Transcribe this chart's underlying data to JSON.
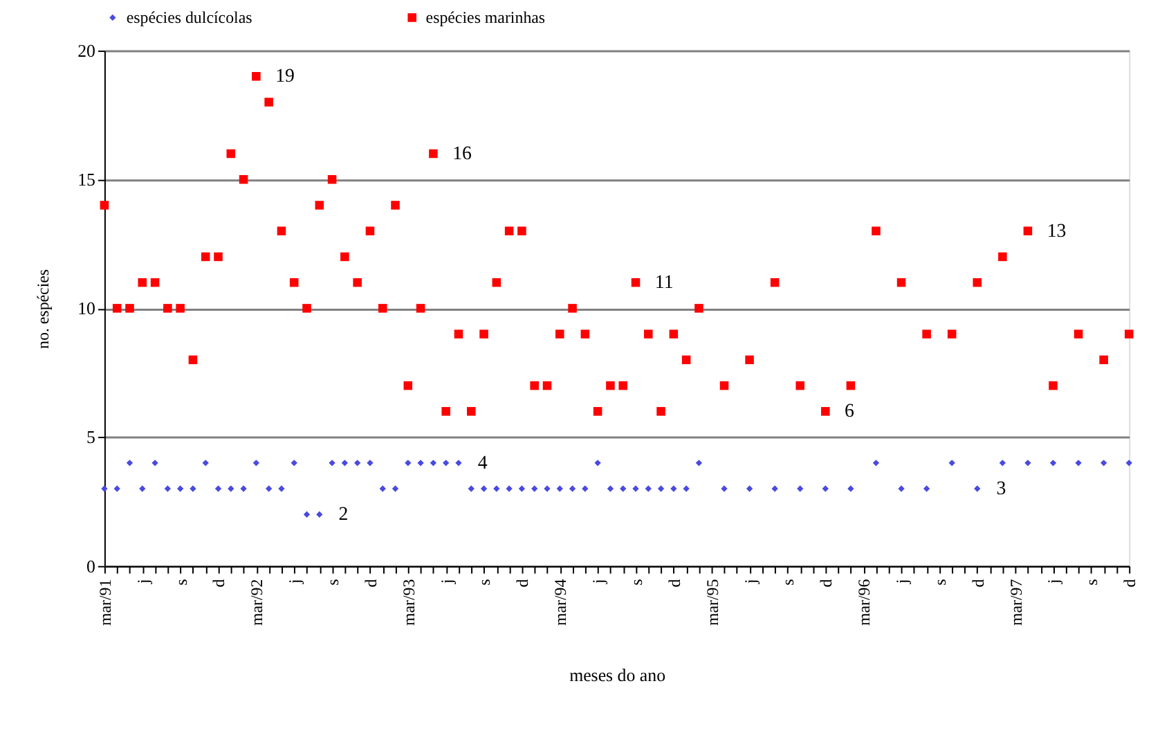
{
  "chart_data": {
    "type": "scatter",
    "xlabel": "meses do ano",
    "ylabel": "no. espécies",
    "x": [
      "1991-03",
      "1991-04",
      "1991-05",
      "1991-06",
      "1991-07",
      "1991-08",
      "1991-09",
      "1991-10",
      "1991-11",
      "1991-12",
      "1992-01",
      "1992-02",
      "1992-03",
      "1992-04",
      "1992-05",
      "1992-06",
      "1992-07",
      "1992-08",
      "1992-09",
      "1992-10",
      "1992-11",
      "1992-12",
      "1993-01",
      "1993-02",
      "1993-03",
      "1993-04",
      "1993-05",
      "1993-06",
      "1993-07",
      "1993-08",
      "1993-09",
      "1993-10",
      "1993-11",
      "1993-12",
      "1994-01",
      "1994-02",
      "1994-03",
      "1994-04",
      "1994-05",
      "1994-06",
      "1994-07",
      "1994-08",
      "1994-09",
      "1994-10",
      "1994-11",
      "1994-12",
      "1995-01",
      "1995-02",
      "1995-03",
      "1995-04",
      "1995-05",
      "1995-06",
      "1995-07",
      "1995-08",
      "1995-09",
      "1995-10",
      "1995-11",
      "1995-12",
      "1996-01",
      "1996-02",
      "1996-03",
      "1996-04",
      "1996-05",
      "1996-06",
      "1996-07",
      "1996-08",
      "1996-09",
      "1996-10",
      "1996-11",
      "1996-12",
      "1997-01",
      "1997-02",
      "1997-03",
      "1997-04",
      "1997-05",
      "1997-06",
      "1997-07",
      "1997-08",
      "1997-09",
      "1997-10",
      "1997-11",
      "1997-12"
    ],
    "series": [
      {
        "name": "espécies dulcícolas",
        "color": "#4a4ae0",
        "marker": "diamond",
        "values": [
          3,
          3,
          4,
          3,
          4,
          3,
          3,
          3,
          4,
          3,
          3,
          3,
          4,
          3,
          3,
          4,
          2,
          2,
          4,
          4,
          4,
          4,
          3,
          3,
          4,
          4,
          4,
          4,
          4,
          3,
          3,
          3,
          3,
          3,
          3,
          3,
          3,
          3,
          3,
          4,
          3,
          3,
          3,
          3,
          3,
          3,
          3,
          4,
          null,
          3,
          null,
          3,
          null,
          3,
          null,
          3,
          null,
          3,
          null,
          3,
          null,
          4,
          null,
          3,
          null,
          3,
          null,
          4,
          null,
          3,
          null,
          4,
          null,
          4,
          null,
          4,
          null,
          4,
          null,
          4,
          null,
          4
        ]
      },
      {
        "name": "espécies marinhas",
        "color": "#ff0000",
        "marker": "square",
        "values": [
          14,
          10,
          10,
          11,
          11,
          10,
          10,
          8,
          12,
          12,
          16,
          15,
          19,
          18,
          13,
          11,
          10,
          14,
          15,
          12,
          11,
          13,
          10,
          14,
          7,
          10,
          16,
          6,
          9,
          6,
          9,
          11,
          13,
          13,
          7,
          7,
          9,
          10,
          9,
          6,
          7,
          7,
          11,
          9,
          6,
          9,
          8,
          10,
          null,
          7,
          null,
          8,
          null,
          11,
          null,
          7,
          null,
          6,
          null,
          7,
          null,
          13,
          null,
          11,
          null,
          9,
          null,
          9,
          null,
          11,
          null,
          12,
          null,
          13,
          null,
          7,
          null,
          9,
          null,
          8,
          null,
          9
        ]
      }
    ],
    "xlim": [
      "1991-03",
      "1997-12"
    ],
    "xticks": [
      {
        "value": "1991-03",
        "label": "mar/91"
      },
      {
        "value": "1991-04",
        "label": null
      },
      {
        "value": "1991-05",
        "label": null
      },
      {
        "value": "1991-06",
        "label": "j"
      },
      {
        "value": "1991-07",
        "label": null
      },
      {
        "value": "1991-08",
        "label": null
      },
      {
        "value": "1991-09",
        "label": "s"
      },
      {
        "value": "1991-10",
        "label": null
      },
      {
        "value": "1991-11",
        "label": null
      },
      {
        "value": "1991-12",
        "label": "d"
      },
      {
        "value": "1992-01",
        "label": null
      },
      {
        "value": "1992-02",
        "label": null
      },
      {
        "value": "1992-03",
        "label": "mar/92"
      },
      {
        "value": "1992-04",
        "label": null
      },
      {
        "value": "1992-05",
        "label": null
      },
      {
        "value": "1992-06",
        "label": "j"
      },
      {
        "value": "1992-07",
        "label": null
      },
      {
        "value": "1992-08",
        "label": null
      },
      {
        "value": "1992-09",
        "label": "s"
      },
      {
        "value": "1992-10",
        "label": null
      },
      {
        "value": "1992-11",
        "label": null
      },
      {
        "value": "1992-12",
        "label": "d"
      },
      {
        "value": "1993-01",
        "label": null
      },
      {
        "value": "1993-02",
        "label": null
      },
      {
        "value": "1993-03",
        "label": "mar/93"
      },
      {
        "value": "1993-04",
        "label": null
      },
      {
        "value": "1993-05",
        "label": null
      },
      {
        "value": "1993-06",
        "label": "j"
      },
      {
        "value": "1993-07",
        "label": null
      },
      {
        "value": "1993-08",
        "label": null
      },
      {
        "value": "1993-09",
        "label": "s"
      },
      {
        "value": "1993-10",
        "label": null
      },
      {
        "value": "1993-11",
        "label": null
      },
      {
        "value": "1993-12",
        "label": "d"
      },
      {
        "value": "1994-01",
        "label": null
      },
      {
        "value": "1994-02",
        "label": null
      },
      {
        "value": "1994-03",
        "label": "mar/94"
      },
      {
        "value": "1994-04",
        "label": null
      },
      {
        "value": "1994-05",
        "label": null
      },
      {
        "value": "1994-06",
        "label": "j"
      },
      {
        "value": "1994-07",
        "label": null
      },
      {
        "value": "1994-08",
        "label": null
      },
      {
        "value": "1994-09",
        "label": "s"
      },
      {
        "value": "1994-10",
        "label": null
      },
      {
        "value": "1994-11",
        "label": null
      },
      {
        "value": "1994-12",
        "label": "d"
      },
      {
        "value": "1995-01",
        "label": null
      },
      {
        "value": "1995-02",
        "label": null
      },
      {
        "value": "1995-03",
        "label": "mar/95"
      },
      {
        "value": "1995-04",
        "label": null
      },
      {
        "value": "1995-05",
        "label": null
      },
      {
        "value": "1995-06",
        "label": "j"
      },
      {
        "value": "1995-07",
        "label": null
      },
      {
        "value": "1995-08",
        "label": null
      },
      {
        "value": "1995-09",
        "label": "s"
      },
      {
        "value": "1995-10",
        "label": null
      },
      {
        "value": "1995-11",
        "label": null
      },
      {
        "value": "1995-12",
        "label": "d"
      },
      {
        "value": "1996-01",
        "label": null
      },
      {
        "value": "1996-02",
        "label": null
      },
      {
        "value": "1996-03",
        "label": "mar/96"
      },
      {
        "value": "1996-04",
        "label": null
      },
      {
        "value": "1996-05",
        "label": null
      },
      {
        "value": "1996-06",
        "label": "j"
      },
      {
        "value": "1996-07",
        "label": null
      },
      {
        "value": "1996-08",
        "label": null
      },
      {
        "value": "1996-09",
        "label": "s"
      },
      {
        "value": "1996-10",
        "label": null
      },
      {
        "value": "1996-11",
        "label": null
      },
      {
        "value": "1996-12",
        "label": "d"
      },
      {
        "value": "1997-01",
        "label": null
      },
      {
        "value": "1997-02",
        "label": null
      },
      {
        "value": "1997-03",
        "label": "mar/97"
      },
      {
        "value": "1997-04",
        "label": null
      },
      {
        "value": "1997-05",
        "label": null
      },
      {
        "value": "1997-06",
        "label": "j"
      },
      {
        "value": "1997-07",
        "label": null
      },
      {
        "value": "1997-08",
        "label": null
      },
      {
        "value": "1997-09",
        "label": "s"
      },
      {
        "value": "1997-10",
        "label": null
      },
      {
        "value": "1997-11",
        "label": null
      },
      {
        "value": "1997-12",
        "label": "d"
      }
    ],
    "ylim": [
      0,
      20
    ],
    "yticks": [
      0,
      5,
      10,
      15,
      20
    ],
    "grid": "y",
    "legend": "top",
    "annotations": [
      {
        "text": "19",
        "x": "1992-03",
        "y": 19
      },
      {
        "text": "16",
        "x": "1993-05",
        "y": 16
      },
      {
        "text": "11",
        "x": "1994-09",
        "y": 11
      },
      {
        "text": "4",
        "x": "1993-07",
        "y": 4
      },
      {
        "text": "2",
        "x": "1992-08",
        "y": 2
      },
      {
        "text": "6",
        "x": "1995-12",
        "y": 6
      },
      {
        "text": "3",
        "x": "1996-12",
        "y": 3
      },
      {
        "text": "13",
        "x": "1997-04",
        "y": 13
      }
    ]
  }
}
